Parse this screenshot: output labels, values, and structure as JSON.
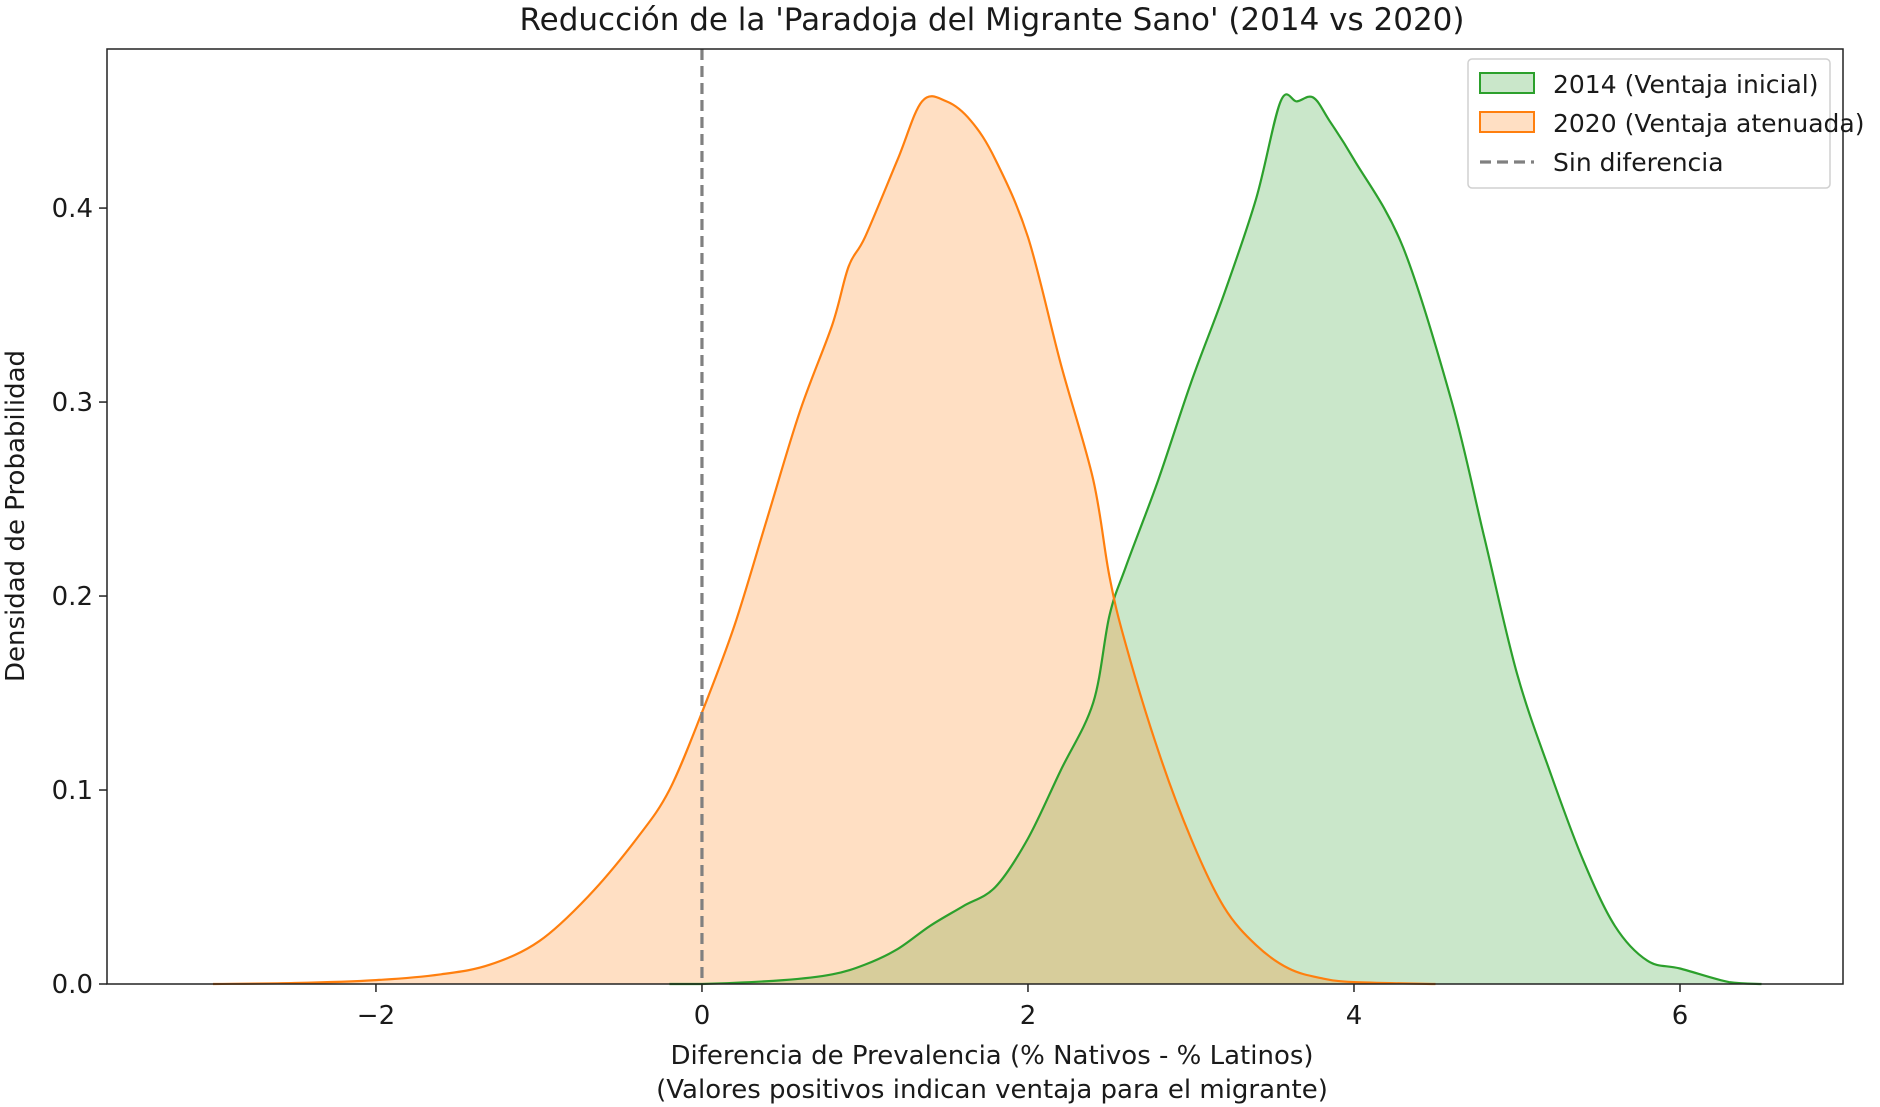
{
  "chart_data": {
    "type": "area",
    "title": "Reducción de la 'Paradoja del Migrante Sano' (2014 vs 2020)",
    "xlabel": "Diferencia de Prevalencia (% Nativos - % Latinos)",
    "xlabel_line2": "(Valores positivos indican ventaja para el migrante)",
    "ylabel": "Densidad de Probabilidad",
    "xlim": [
      -3.65,
      7.0
    ],
    "ylim": [
      0.0,
      0.482
    ],
    "xticks": [
      -2,
      0,
      2,
      4,
      6
    ],
    "xtick_labels": [
      "−2",
      "0",
      "2",
      "4",
      "6"
    ],
    "yticks": [
      0.0,
      0.1,
      0.2,
      0.3,
      0.4
    ],
    "ytick_labels": [
      "0.0",
      "0.1",
      "0.2",
      "0.3",
      "0.4"
    ],
    "grid": false,
    "legend_position": "top-right",
    "series": [
      {
        "name": "2014 (Ventaja inicial)",
        "line_color": "#2ca02c",
        "fill_color": "#2ca02c",
        "points": [
          [
            -0.2,
            0.0
          ],
          [
            0.0,
            0.0
          ],
          [
            0.5,
            0.002
          ],
          [
            0.8,
            0.005
          ],
          [
            1.0,
            0.01
          ],
          [
            1.2,
            0.018
          ],
          [
            1.4,
            0.03
          ],
          [
            1.6,
            0.04
          ],
          [
            1.8,
            0.05
          ],
          [
            2.0,
            0.075
          ],
          [
            2.2,
            0.11
          ],
          [
            2.4,
            0.145
          ],
          [
            2.5,
            0.19
          ],
          [
            2.6,
            0.215
          ],
          [
            2.8,
            0.26
          ],
          [
            3.0,
            0.31
          ],
          [
            3.2,
            0.355
          ],
          [
            3.4,
            0.405
          ],
          [
            3.55,
            0.455
          ],
          [
            3.65,
            0.455
          ],
          [
            3.75,
            0.457
          ],
          [
            3.85,
            0.445
          ],
          [
            4.0,
            0.425
          ],
          [
            4.3,
            0.38
          ],
          [
            4.6,
            0.3
          ],
          [
            4.8,
            0.23
          ],
          [
            5.0,
            0.16
          ],
          [
            5.2,
            0.11
          ],
          [
            5.4,
            0.065
          ],
          [
            5.6,
            0.03
          ],
          [
            5.8,
            0.012
          ],
          [
            6.0,
            0.008
          ],
          [
            6.3,
            0.001
          ],
          [
            6.5,
            0.0
          ]
        ]
      },
      {
        "name": "2020 (Ventaja atenuada)",
        "line_color": "#ff7f0e",
        "fill_color": "#ff7f0e",
        "points": [
          [
            -3.0,
            0.0
          ],
          [
            -2.5,
            0.0005
          ],
          [
            -2.0,
            0.002
          ],
          [
            -1.6,
            0.005
          ],
          [
            -1.3,
            0.01
          ],
          [
            -1.0,
            0.022
          ],
          [
            -0.7,
            0.045
          ],
          [
            -0.4,
            0.075
          ],
          [
            -0.2,
            0.1
          ],
          [
            0.0,
            0.14
          ],
          [
            0.2,
            0.185
          ],
          [
            0.4,
            0.24
          ],
          [
            0.6,
            0.295
          ],
          [
            0.8,
            0.34
          ],
          [
            0.9,
            0.37
          ],
          [
            1.0,
            0.385
          ],
          [
            1.2,
            0.425
          ],
          [
            1.35,
            0.455
          ],
          [
            1.5,
            0.455
          ],
          [
            1.65,
            0.445
          ],
          [
            1.8,
            0.425
          ],
          [
            2.0,
            0.385
          ],
          [
            2.2,
            0.32
          ],
          [
            2.4,
            0.26
          ],
          [
            2.5,
            0.21
          ],
          [
            2.6,
            0.175
          ],
          [
            2.8,
            0.12
          ],
          [
            3.0,
            0.075
          ],
          [
            3.2,
            0.04
          ],
          [
            3.4,
            0.02
          ],
          [
            3.6,
            0.008
          ],
          [
            3.8,
            0.003
          ],
          [
            4.0,
            0.001
          ],
          [
            4.5,
            0.0
          ]
        ]
      }
    ],
    "reference_line": {
      "name": "Sin diferencia",
      "x": 0,
      "color": "#808080",
      "style": "dashed"
    }
  }
}
